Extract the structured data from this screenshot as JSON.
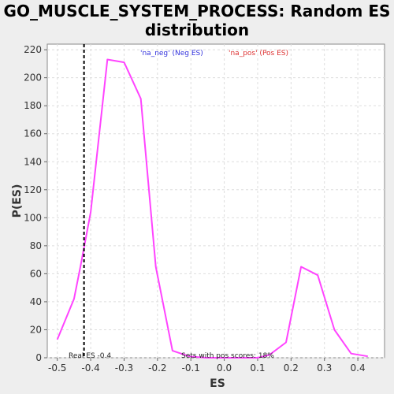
{
  "chart_data": {
    "type": "line",
    "title_line1": "GO_MUSCLE_SYSTEM_PROCESS: Random ES",
    "title_line2": "distribution",
    "xlabel": "ES",
    "ylabel": "P(ES)",
    "xlim": [
      -0.53,
      0.48
    ],
    "ylim": [
      0,
      224
    ],
    "xticks": [
      -0.5,
      -0.4,
      -0.3,
      -0.2,
      -0.1,
      0.0,
      0.1,
      0.2,
      0.3,
      0.4
    ],
    "xtick_labels": [
      "-0.5",
      "-0.4",
      "-0.3",
      "-0.2",
      "-0.1",
      "0.0",
      "0.1",
      "0.2",
      "0.3",
      "0.4"
    ],
    "yticks": [
      0,
      20,
      40,
      60,
      80,
      100,
      120,
      140,
      160,
      180,
      200,
      220
    ],
    "ytick_labels": [
      "0",
      "20",
      "40",
      "60",
      "80",
      "100",
      "120",
      "140",
      "160",
      "180",
      "200",
      "220"
    ],
    "grid": true,
    "series": [
      {
        "color": "#ff44ff",
        "x": [
          -0.5,
          -0.45,
          -0.43,
          -0.4,
          -0.35,
          -0.3,
          -0.25,
          -0.205,
          -0.155,
          -0.105,
          -0.055,
          0.0,
          0.05,
          0.1,
          0.135,
          0.185,
          0.23,
          0.28,
          0.33,
          0.38,
          0.43
        ],
        "y": [
          13,
          42,
          66,
          104,
          213,
          211,
          185,
          65,
          5,
          1,
          0,
          0,
          0,
          0,
          2,
          11,
          65,
          59,
          20,
          3,
          1
        ]
      }
    ],
    "real_es": -0.42,
    "real_es_label": "Real ES -0.4",
    "pos_scores_label": "Sets with pos scores: 18%",
    "legend": {
      "placement": "top",
      "neg": {
        "label": "'na_neg' (Neg ES)",
        "color": "#3333dd"
      },
      "pos": {
        "label": "'na_pos' (Pos ES)",
        "color": "#dd3333"
      }
    }
  }
}
